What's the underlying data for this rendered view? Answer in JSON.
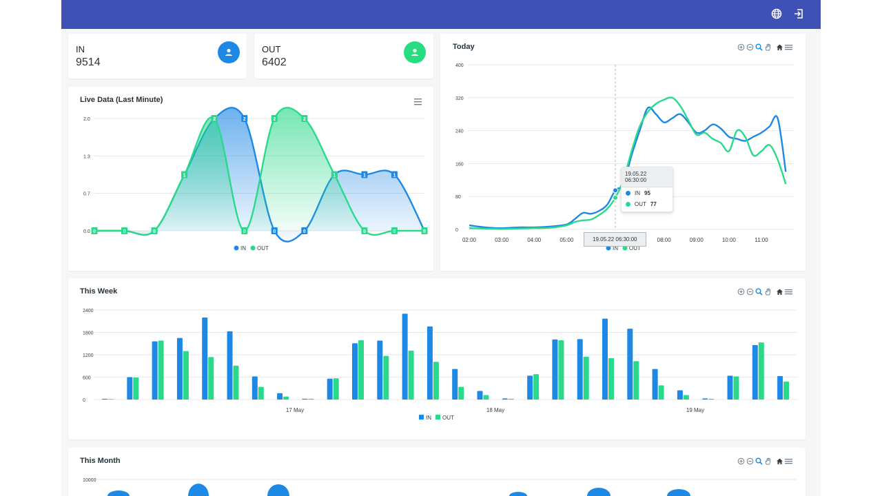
{
  "topbar": {
    "globe_icon": "globe-icon",
    "logout_icon": "logout-icon",
    "color": "#3f51b5"
  },
  "stats": [
    {
      "label": "IN",
      "value": "9514",
      "color": "#1e88e5",
      "icon": "person-icon"
    },
    {
      "label": "OUT",
      "value": "6402",
      "color": "#26de81",
      "icon": "person-icon"
    }
  ],
  "colors": {
    "in": "#1e88e5",
    "out": "#2bd98b"
  },
  "live": {
    "title": "Live Data (Last Minute)",
    "chart_data": {
      "type": "area",
      "title": "Live Data (Last Minute)",
      "y_ticks": [
        "2.0",
        "1.3",
        "0.7",
        "0.0"
      ],
      "ylim": [
        0,
        2
      ],
      "legend": [
        "IN",
        "OUT"
      ],
      "legend_position": "bottom",
      "series": [
        {
          "name": "IN",
          "values": [
            0,
            0,
            0,
            1,
            2,
            2,
            0,
            0,
            1,
            1,
            1,
            0
          ]
        },
        {
          "name": "OUT",
          "values": [
            0,
            0,
            0,
            1,
            2,
            0,
            2,
            2,
            1,
            0,
            0,
            0
          ]
        }
      ],
      "data_labels": true
    }
  },
  "today": {
    "title": "Today",
    "chart_data": {
      "type": "line",
      "title": "Today",
      "y_ticks": [
        "400",
        "320",
        "240",
        "160",
        "80",
        "0"
      ],
      "ylim": [
        0,
        400
      ],
      "x_ticks": [
        "02:00",
        "03:00",
        "04:00",
        "05:00",
        "06:00",
        "07:00",
        "08:00",
        "09:00",
        "10:00",
        "11:00"
      ],
      "legend": [
        "IN",
        "OUT"
      ],
      "legend_position": "bottom",
      "series": [
        {
          "name": "IN",
          "x": [
            "02:00",
            "02:30",
            "03:00",
            "03:30",
            "04:00",
            "04:30",
            "05:00",
            "05:15",
            "05:30",
            "05:45",
            "06:00",
            "06:15",
            "06:30",
            "06:45",
            "07:00",
            "07:15",
            "07:30",
            "07:45",
            "08:00",
            "08:15",
            "08:30",
            "08:45",
            "09:00",
            "09:15",
            "09:30",
            "09:45",
            "10:00",
            "10:15",
            "10:30",
            "10:45",
            "11:00",
            "11:15",
            "11:30",
            "11:45"
          ],
          "values": [
            10,
            5,
            3,
            5,
            5,
            7,
            12,
            25,
            40,
            38,
            45,
            60,
            95,
            110,
            180,
            240,
            295,
            280,
            260,
            270,
            280,
            260,
            235,
            240,
            255,
            245,
            225,
            220,
            215,
            225,
            235,
            250,
            270,
            140
          ]
        },
        {
          "name": "OUT",
          "x": [
            "02:00",
            "02:30",
            "03:00",
            "03:30",
            "04:00",
            "04:30",
            "05:00",
            "05:15",
            "05:30",
            "05:45",
            "06:00",
            "06:15",
            "06:30",
            "06:45",
            "07:00",
            "07:15",
            "07:30",
            "07:45",
            "08:00",
            "08:15",
            "08:30",
            "08:45",
            "09:00",
            "09:15",
            "09:30",
            "09:45",
            "10:00",
            "10:15",
            "10:30",
            "10:45",
            "11:00",
            "11:15",
            "11:30",
            "11:45"
          ],
          "values": [
            3,
            2,
            1,
            2,
            3,
            4,
            10,
            18,
            22,
            24,
            35,
            50,
            77,
            120,
            190,
            250,
            285,
            305,
            315,
            320,
            300,
            265,
            230,
            235,
            220,
            210,
            190,
            240,
            225,
            180,
            190,
            205,
            170,
            110
          ]
        }
      ],
      "tooltip": {
        "title": "19.05.22 06:30:00",
        "rows": [
          {
            "name": "IN",
            "value": "95"
          },
          {
            "name": "OUT",
            "value": "77"
          }
        ]
      },
      "crosshair_label": "19.05.22 06:30:00"
    }
  },
  "week": {
    "title": "This Week",
    "chart_data": {
      "type": "bar",
      "title": "This Week",
      "y_ticks": [
        "2400",
        "1800",
        "1200",
        "600",
        "0"
      ],
      "ylim": [
        0,
        2400
      ],
      "x_ticks": [
        "17 May",
        "18 May",
        "19 May"
      ],
      "legend": [
        "IN",
        "OUT"
      ],
      "legend_position": "bottom",
      "series": [
        {
          "name": "IN",
          "values": [
            20,
            600,
            1560,
            1650,
            2200,
            1830,
            620,
            170,
            20,
            560,
            1510,
            1580,
            2300,
            1960,
            820,
            230,
            30,
            640,
            1610,
            1620,
            2170,
            1900,
            820,
            250,
            30,
            640,
            1460,
            630
          ]
        },
        {
          "name": "OUT",
          "values": [
            15,
            590,
            1580,
            1300,
            1140,
            910,
            340,
            80,
            20,
            570,
            1590,
            1170,
            1310,
            1010,
            340,
            120,
            20,
            680,
            1590,
            1150,
            1110,
            1030,
            380,
            120,
            20,
            620,
            1530,
            480
          ]
        }
      ]
    }
  },
  "month": {
    "title": "This Month",
    "chart_data": {
      "type": "bar",
      "title": "This Month",
      "y_ticks": [
        "10000"
      ],
      "partial": true
    }
  },
  "toolbar_icons": [
    "zoom-in-icon",
    "zoom-out-icon",
    "zoom-select-icon",
    "pan-hand-icon",
    "home-reset-icon",
    "menu-icon"
  ]
}
